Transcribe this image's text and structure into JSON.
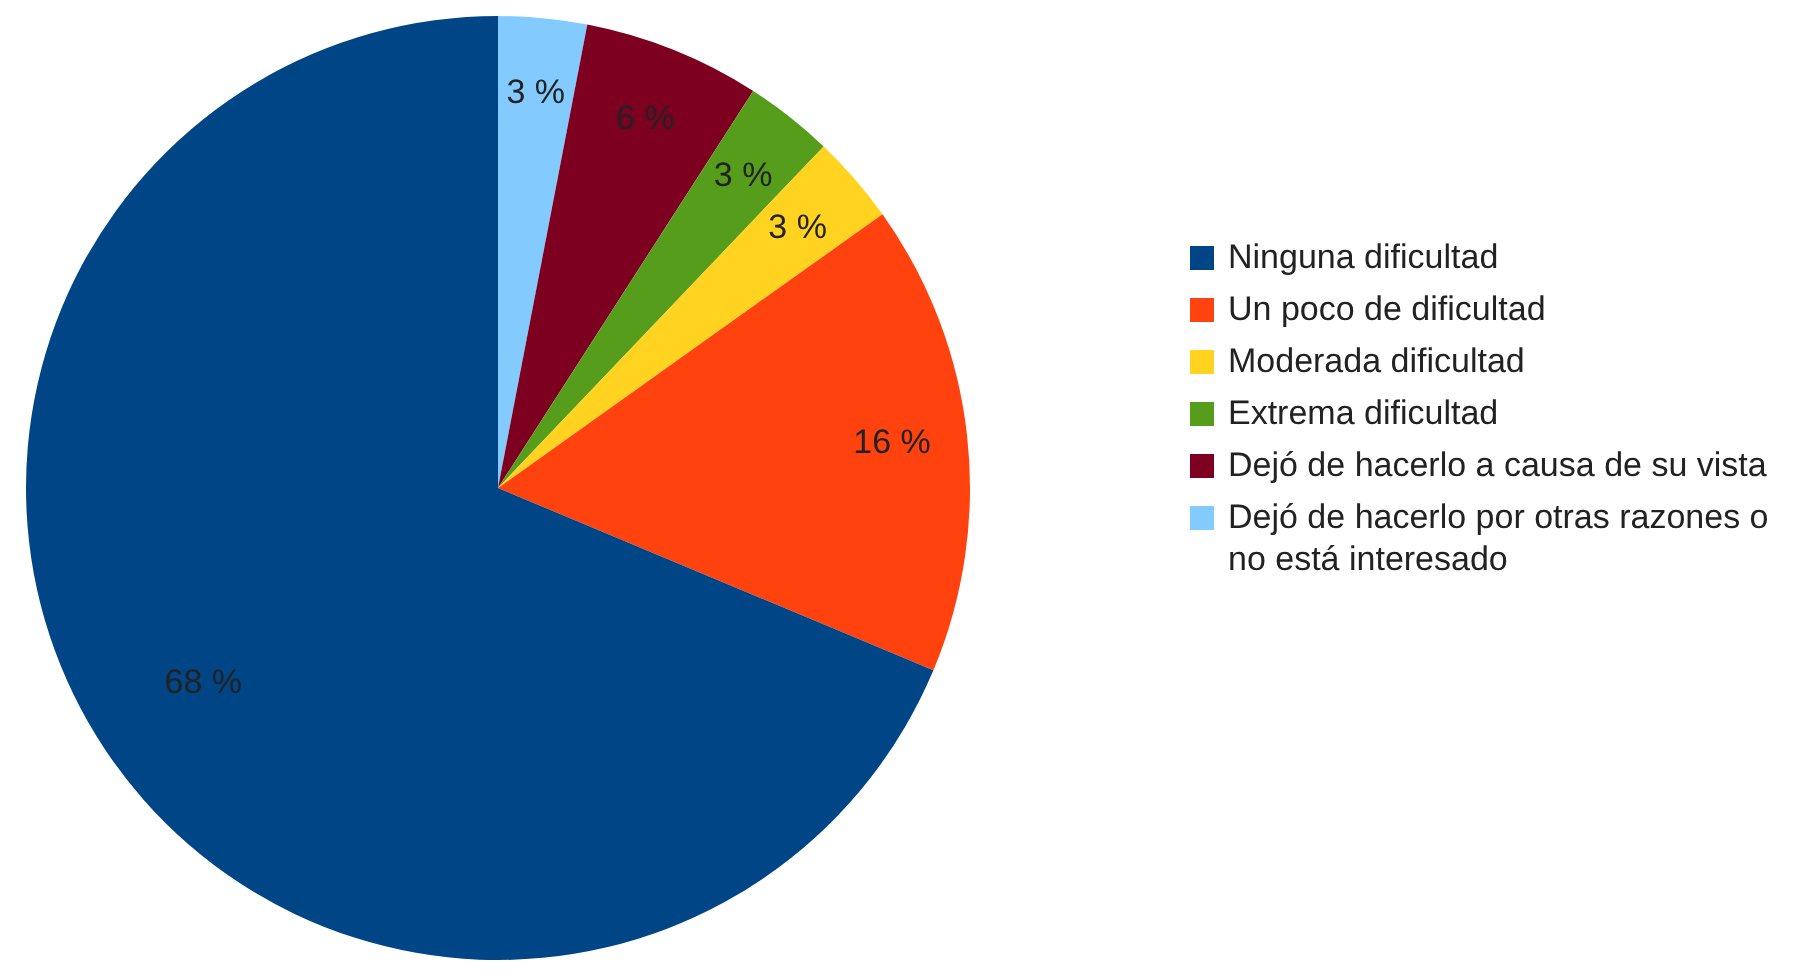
{
  "chart_data": {
    "type": "pie",
    "categories": [
      "Ninguna dificultad",
      "Un poco de dificultad",
      "Moderada dificultad",
      "Extrema dificultad",
      "Dejó de hacerlo a causa de su vista",
      "Dejó de hacerlo por otras razones o no está interesado"
    ],
    "values": [
      68,
      16,
      3,
      3,
      6,
      3
    ],
    "value_labels": [
      "68 %",
      "16 %",
      "3 %",
      "3 %",
      "6 %",
      "3 %"
    ],
    "colors": [
      "#004586",
      "#ff420e",
      "#ffd320",
      "#579d1c",
      "#7e0021",
      "#83caff"
    ],
    "legend": "right"
  }
}
